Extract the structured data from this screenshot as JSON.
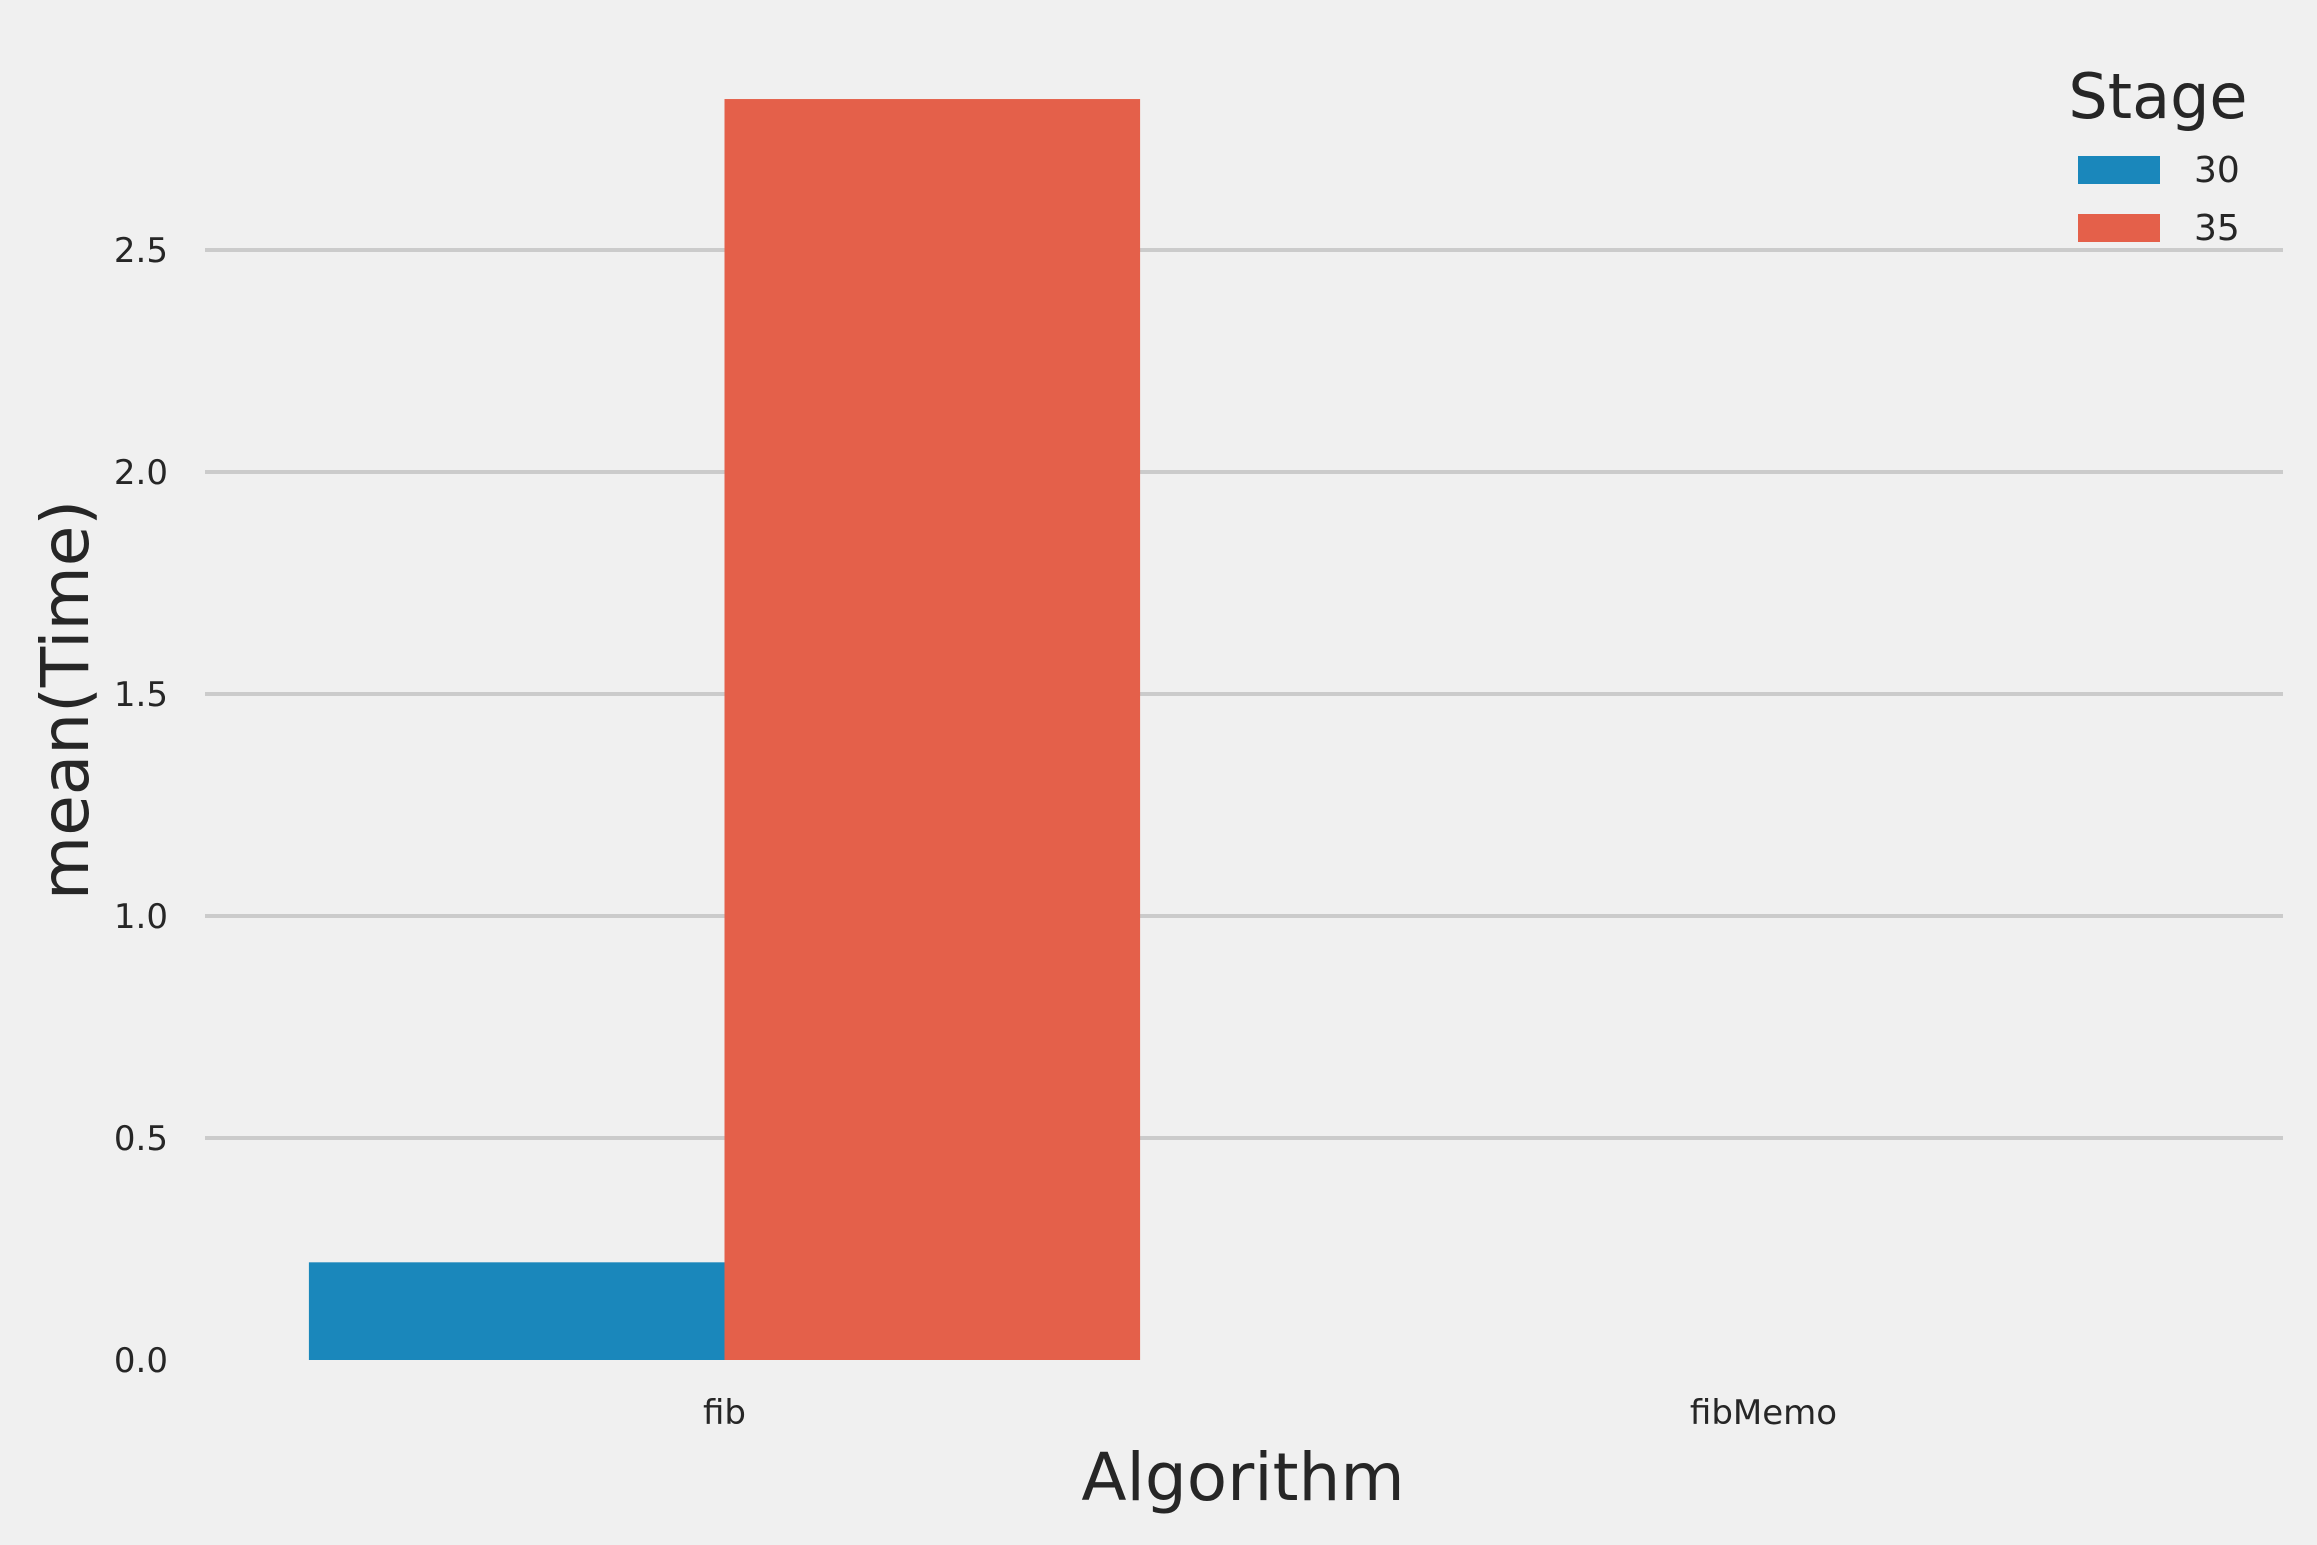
{
  "chart_data": {
    "type": "bar",
    "xlabel": "Algorithm",
    "ylabel": "mean(Time)",
    "categories": [
      "fib",
      "fibMemo"
    ],
    "series": [
      {
        "name": "30",
        "values": [
          0.22,
          0.0
        ]
      },
      {
        "name": "35",
        "values": [
          2.84,
          0.0
        ]
      }
    ],
    "ylim": [
      0,
      2.9
    ],
    "yticks": [
      0.0,
      0.5,
      1.0,
      1.5,
      2.0,
      2.5
    ],
    "ytick_labels": [
      "0.0",
      "0.5",
      "1.0",
      "1.5",
      "2.0",
      "2.5"
    ],
    "grid": true,
    "legend": {
      "title": "Stage",
      "position": "top-right"
    },
    "colors": [
      "#1a87bb",
      "#e4604a"
    ]
  }
}
